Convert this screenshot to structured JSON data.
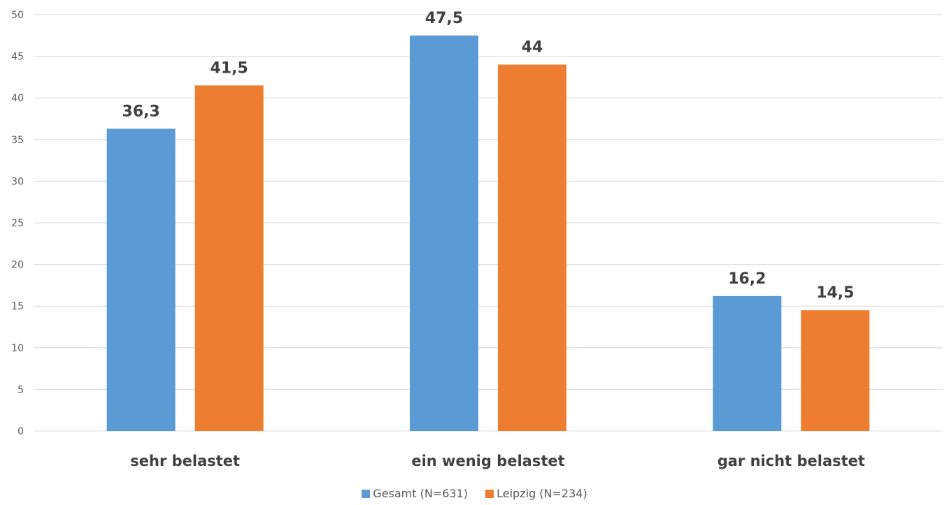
{
  "chart_data": {
    "type": "bar",
    "categories": [
      "sehr belastet",
      "ein wenig belastet",
      "gar nicht belastet"
    ],
    "series": [
      {
        "name": "Gesamt (N=631)",
        "values": [
          36.3,
          47.5,
          16.2
        ],
        "labels": [
          "36,3",
          "47,5",
          "16,2"
        ],
        "color": "#5B9BD5"
      },
      {
        "name": "Leipzig (N=234)",
        "values": [
          41.5,
          44,
          14.5
        ],
        "labels": [
          "41,5",
          "44",
          "14,5"
        ],
        "color": "#ED7D31"
      }
    ],
    "ylim": [
      0,
      50
    ],
    "yticks": [
      0,
      5,
      10,
      15,
      20,
      25,
      30,
      35,
      40,
      45,
      50
    ],
    "grid": true,
    "legend_position": "bottom"
  }
}
